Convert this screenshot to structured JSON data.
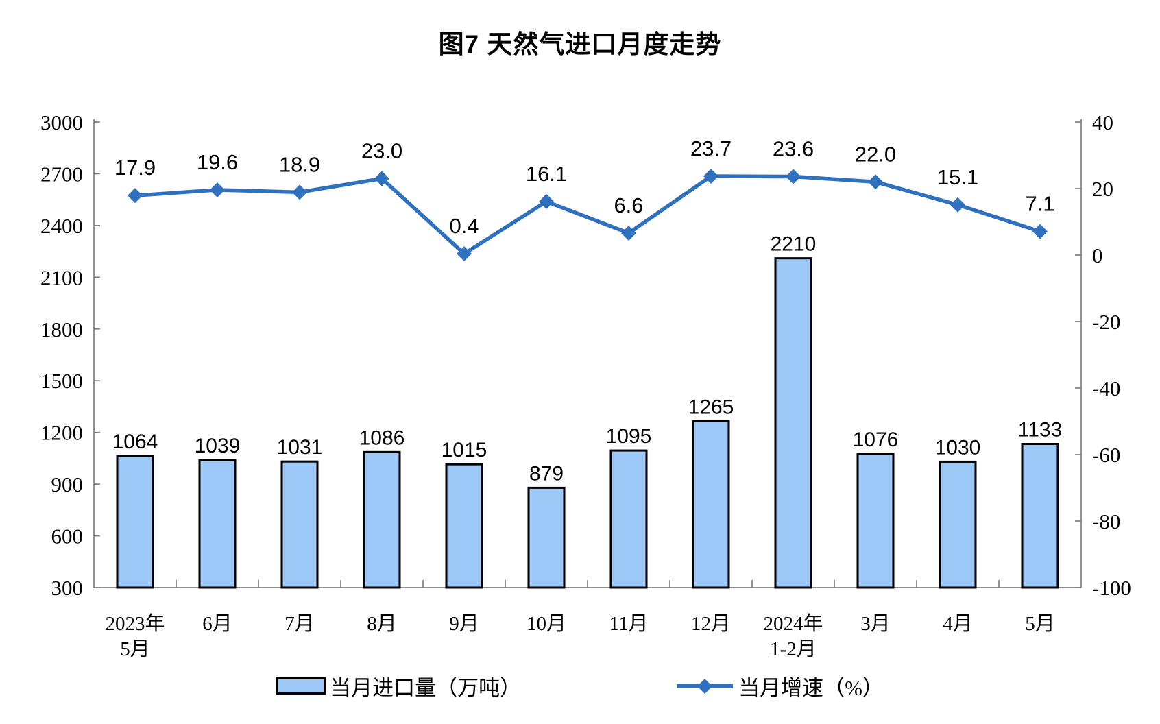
{
  "title": "图7 天然气进口月度走势",
  "legend": {
    "bar_label": "当月进口量（万吨）",
    "line_label": "当月增速（%）"
  },
  "colors": {
    "bar_fill": "#9CC9F8",
    "bar_border": "#000000",
    "line": "#2F71BE",
    "axis": "#7F7F7F",
    "text": "#000000"
  },
  "chart_data": {
    "type": "bar+line",
    "title": "图7 天然气进口月度走势",
    "categories": [
      "2023年\n5月",
      "6月",
      "7月",
      "8月",
      "9月",
      "10月",
      "11月",
      "12月",
      "2024年\n1-2月",
      "3月",
      "4月",
      "5月"
    ],
    "series": [
      {
        "name": "当月进口量（万吨）",
        "chart": "bar",
        "axis": "left",
        "values": [
          1064,
          1039,
          1031,
          1086,
          1015,
          879,
          1095,
          1265,
          2210,
          1076,
          1030,
          1133
        ]
      },
      {
        "name": "当月增速（%）",
        "chart": "line",
        "axis": "right",
        "marker": "diamond",
        "values": [
          17.9,
          19.6,
          18.9,
          23.0,
          0.4,
          16.1,
          6.6,
          23.7,
          23.6,
          22.0,
          15.1,
          7.1
        ]
      }
    ],
    "axes": {
      "left": {
        "min": 300,
        "max": 3000,
        "step": 300,
        "bar_baseline": 300
      },
      "right": {
        "min": -100,
        "max": 40,
        "step": 20
      }
    },
    "grid": false,
    "data_labels": true,
    "legend_position": "bottom"
  }
}
